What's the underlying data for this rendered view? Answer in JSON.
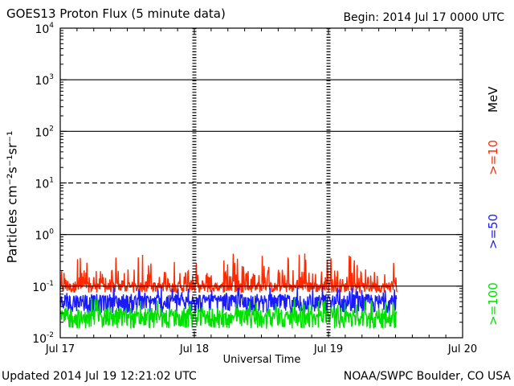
{
  "header": {
    "title": "GOES13 Proton Flux (5 minute data)",
    "begin": "Begin: 2014 Jul 17 0000 UTC"
  },
  "footer": {
    "updated": "Updated 2014 Jul 19 12:21:02 UTC",
    "credit": "NOAA/SWPC Boulder, CO USA"
  },
  "chart_data": {
    "type": "line",
    "title": "GOES13 Proton Flux (5 minute data)",
    "xlabel": "Universal Time",
    "ylabel": "Particles cm⁻²s⁻¹sr⁻¹",
    "yscale": "log",
    "ylim_exponent": [
      -2,
      4
    ],
    "y_ticks": [
      {
        "base": "10",
        "exp": "-2",
        "value": 0.01
      },
      {
        "base": "10",
        "exp": "-1",
        "value": 0.1
      },
      {
        "base": "10",
        "exp": "0",
        "value": 1
      },
      {
        "base": "10",
        "exp": "1",
        "value": 10
      },
      {
        "base": "10",
        "exp": "2",
        "value": 100
      },
      {
        "base": "10",
        "exp": "3",
        "value": 1000
      },
      {
        "base": "10",
        "exp": "4",
        "value": 10000
      }
    ],
    "threshold_line": {
      "value": 10,
      "style": "dashed"
    },
    "x_ticks": [
      "Jul 17",
      "Jul 18",
      "Jul 19",
      "Jul 20"
    ],
    "x_range_days": [
      0,
      3
    ],
    "data_end_day": 2.51,
    "legend_unit": "MeV",
    "series": [
      {
        "name": ">=10",
        "color": "#ff2a00",
        "low": 0.075,
        "typical": 0.1,
        "high": 0.45
      },
      {
        "name": ">=50",
        "color": "#1a1aff",
        "low": 0.03,
        "typical": 0.05,
        "high": 0.1
      },
      {
        "name": ">=100",
        "color": "#00e000",
        "low": 0.015,
        "typical": 0.025,
        "high": 0.06
      }
    ],
    "grid": "horizontal at decades; dotted vertical at day boundaries"
  }
}
